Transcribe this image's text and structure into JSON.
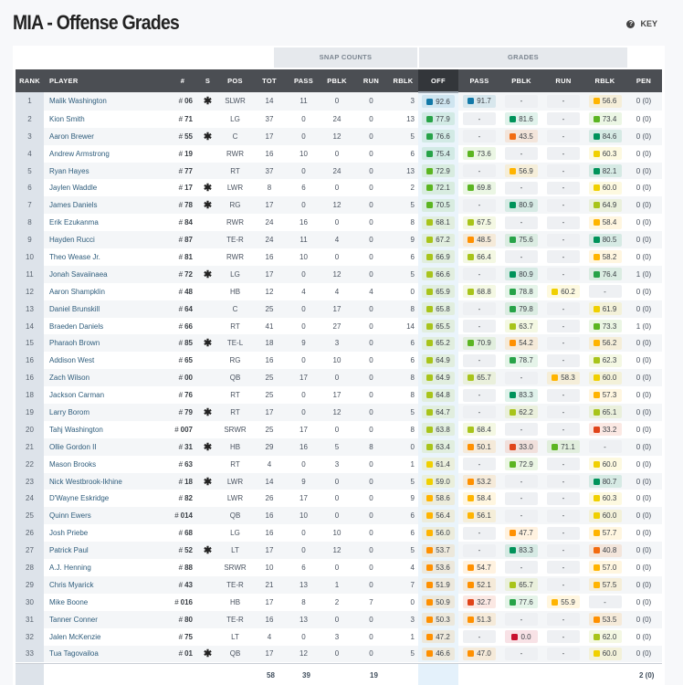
{
  "header": {
    "title": "MIA - Offense Grades",
    "key_label": "KEY",
    "key_icon": "question-circle-icon"
  },
  "groups": {
    "snap_counts": "SNAP COUNTS",
    "grades": "GRADES"
  },
  "columns": [
    "RANK",
    "PLAYER",
    "#",
    "S",
    "POS",
    "TOT",
    "PASS",
    "PBLK",
    "RUN",
    "RBLK",
    "OFF",
    "PASS",
    "PBLK",
    "RUN",
    "RBLK",
    "PEN"
  ],
  "grade_colors": {
    "elite": "#1279a8",
    "high": "#00935a",
    "good": "#27a348",
    "above_avg": "#5bb521",
    "avg_plus": "#a8c41a",
    "average": "#f0d000",
    "below_avg": "#ffb400",
    "poor": "#ff9000",
    "low": "#f26b10",
    "very_low": "#e0441a",
    "zero": "#c8102e"
  },
  "starter_icon": "asterisk-icon",
  "rows": [
    {
      "rank": "1",
      "player": "Malik Washington",
      "num": "06",
      "s": true,
      "pos": "SLWR",
      "snaps": [
        "14",
        "11",
        "0",
        "0",
        "3"
      ],
      "grades": [
        "92.6",
        "91.7",
        "-",
        "-",
        "56.6"
      ],
      "pen": "0 (0)"
    },
    {
      "rank": "2",
      "player": "Kion Smith",
      "num": "71",
      "s": false,
      "pos": "LG",
      "snaps": [
        "37",
        "0",
        "24",
        "0",
        "13"
      ],
      "grades": [
        "77.9",
        "-",
        "81.6",
        "-",
        "73.4"
      ],
      "pen": "0 (0)"
    },
    {
      "rank": "3",
      "player": "Aaron Brewer",
      "num": "55",
      "s": true,
      "pos": "C",
      "snaps": [
        "17",
        "0",
        "12",
        "0",
        "5"
      ],
      "grades": [
        "76.6",
        "-",
        "43.5",
        "-",
        "84.6"
      ],
      "pen": "0 (0)"
    },
    {
      "rank": "4",
      "player": "Andrew Armstrong",
      "num": "19",
      "s": false,
      "pos": "RWR",
      "snaps": [
        "16",
        "10",
        "0",
        "0",
        "6"
      ],
      "grades": [
        "75.4",
        "73.6",
        "-",
        "-",
        "60.3"
      ],
      "pen": "0 (0)"
    },
    {
      "rank": "5",
      "player": "Ryan Hayes",
      "num": "77",
      "s": false,
      "pos": "RT",
      "snaps": [
        "37",
        "0",
        "24",
        "0",
        "13"
      ],
      "grades": [
        "72.9",
        "-",
        "56.9",
        "-",
        "82.1"
      ],
      "pen": "0 (0)"
    },
    {
      "rank": "6",
      "player": "Jaylen Waddle",
      "num": "17",
      "s": true,
      "pos": "LWR",
      "snaps": [
        "8",
        "6",
        "0",
        "0",
        "2"
      ],
      "grades": [
        "72.1",
        "69.8",
        "-",
        "-",
        "60.0"
      ],
      "pen": "0 (0)"
    },
    {
      "rank": "7",
      "player": "James Daniels",
      "num": "78",
      "s": true,
      "pos": "RG",
      "snaps": [
        "17",
        "0",
        "12",
        "0",
        "5"
      ],
      "grades": [
        "70.5",
        "-",
        "80.9",
        "-",
        "64.9"
      ],
      "pen": "0 (0)"
    },
    {
      "rank": "8",
      "player": "Erik Ezukanma",
      "num": "84",
      "s": false,
      "pos": "RWR",
      "snaps": [
        "24",
        "16",
        "0",
        "0",
        "8"
      ],
      "grades": [
        "68.1",
        "67.5",
        "-",
        "-",
        "58.4"
      ],
      "pen": "0 (0)"
    },
    {
      "rank": "9",
      "player": "Hayden Rucci",
      "num": "87",
      "s": false,
      "pos": "TE-R",
      "snaps": [
        "24",
        "11",
        "4",
        "0",
        "9"
      ],
      "grades": [
        "67.2",
        "48.5",
        "75.6",
        "-",
        "80.5"
      ],
      "pen": "0 (0)"
    },
    {
      "rank": "10",
      "player": "Theo Wease Jr.",
      "num": "81",
      "s": false,
      "pos": "RWR",
      "snaps": [
        "16",
        "10",
        "0",
        "0",
        "6"
      ],
      "grades": [
        "66.9",
        "66.4",
        "-",
        "-",
        "58.2"
      ],
      "pen": "0 (0)"
    },
    {
      "rank": "11",
      "player": "Jonah Savaiinaea",
      "num": "72",
      "s": true,
      "pos": "LG",
      "snaps": [
        "17",
        "0",
        "12",
        "0",
        "5"
      ],
      "grades": [
        "66.6",
        "-",
        "80.9",
        "-",
        "76.4"
      ],
      "pen": "1 (0)"
    },
    {
      "rank": "12",
      "player": "Aaron Shampklin",
      "num": "48",
      "s": false,
      "pos": "HB",
      "snaps": [
        "12",
        "4",
        "4",
        "4",
        "0"
      ],
      "grades": [
        "65.9",
        "68.8",
        "78.8",
        "60.2",
        "-"
      ],
      "pen": "0 (0)"
    },
    {
      "rank": "13",
      "player": "Daniel Brunskill",
      "num": "64",
      "s": false,
      "pos": "C",
      "snaps": [
        "25",
        "0",
        "17",
        "0",
        "8"
      ],
      "grades": [
        "65.8",
        "-",
        "79.8",
        "-",
        "61.9"
      ],
      "pen": "0 (0)"
    },
    {
      "rank": "14",
      "player": "Braeden Daniels",
      "num": "66",
      "s": false,
      "pos": "RT",
      "snaps": [
        "41",
        "0",
        "27",
        "0",
        "14"
      ],
      "grades": [
        "65.5",
        "-",
        "63.7",
        "-",
        "73.3"
      ],
      "pen": "1 (0)"
    },
    {
      "rank": "15",
      "player": "Pharaoh Brown",
      "num": "85",
      "s": true,
      "pos": "TE-L",
      "snaps": [
        "18",
        "9",
        "3",
        "0",
        "6"
      ],
      "grades": [
        "65.2",
        "70.9",
        "54.2",
        "-",
        "56.2"
      ],
      "pen": "0 (0)"
    },
    {
      "rank": "16",
      "player": "Addison West",
      "num": "65",
      "s": false,
      "pos": "RG",
      "snaps": [
        "16",
        "0",
        "10",
        "0",
        "6"
      ],
      "grades": [
        "64.9",
        "-",
        "78.7",
        "-",
        "62.3"
      ],
      "pen": "0 (0)"
    },
    {
      "rank": "16",
      "player": "Zach Wilson",
      "num": "00",
      "s": false,
      "pos": "QB",
      "snaps": [
        "25",
        "17",
        "0",
        "0",
        "8"
      ],
      "grades": [
        "64.9",
        "65.7",
        "-",
        "58.3",
        "60.0"
      ],
      "pen": "0 (0)"
    },
    {
      "rank": "18",
      "player": "Jackson Carman",
      "num": "76",
      "s": false,
      "pos": "RT",
      "snaps": [
        "25",
        "0",
        "17",
        "0",
        "8"
      ],
      "grades": [
        "64.8",
        "-",
        "83.3",
        "-",
        "57.3"
      ],
      "pen": "0 (0)"
    },
    {
      "rank": "19",
      "player": "Larry Borom",
      "num": "79",
      "s": true,
      "pos": "RT",
      "snaps": [
        "17",
        "0",
        "12",
        "0",
        "5"
      ],
      "grades": [
        "64.7",
        "-",
        "62.2",
        "-",
        "65.1"
      ],
      "pen": "0 (0)"
    },
    {
      "rank": "20",
      "player": "Tahj Washington",
      "num": "007",
      "s": false,
      "pos": "SRWR",
      "snaps": [
        "25",
        "17",
        "0",
        "0",
        "8"
      ],
      "grades": [
        "63.8",
        "68.4",
        "-",
        "-",
        "33.2"
      ],
      "pen": "0 (0)"
    },
    {
      "rank": "21",
      "player": "Ollie Gordon II",
      "num": "31",
      "s": true,
      "pos": "HB",
      "snaps": [
        "29",
        "16",
        "5",
        "8",
        "0"
      ],
      "grades": [
        "63.4",
        "50.1",
        "33.0",
        "71.1",
        "-"
      ],
      "pen": "0 (0)"
    },
    {
      "rank": "22",
      "player": "Mason Brooks",
      "num": "63",
      "s": false,
      "pos": "RT",
      "snaps": [
        "4",
        "0",
        "3",
        "0",
        "1"
      ],
      "grades": [
        "61.4",
        "-",
        "72.9",
        "-",
        "60.0"
      ],
      "pen": "0 (0)"
    },
    {
      "rank": "23",
      "player": "Nick Westbrook-Ikhine",
      "num": "18",
      "s": true,
      "pos": "LWR",
      "snaps": [
        "14",
        "9",
        "0",
        "0",
        "5"
      ],
      "grades": [
        "59.0",
        "53.2",
        "-",
        "-",
        "80.7"
      ],
      "pen": "0 (0)"
    },
    {
      "rank": "24",
      "player": "D'Wayne Eskridge",
      "num": "82",
      "s": false,
      "pos": "LWR",
      "snaps": [
        "26",
        "17",
        "0",
        "0",
        "9"
      ],
      "grades": [
        "58.6",
        "58.4",
        "-",
        "-",
        "60.3"
      ],
      "pen": "0 (0)"
    },
    {
      "rank": "25",
      "player": "Quinn Ewers",
      "num": "014",
      "s": false,
      "pos": "QB",
      "snaps": [
        "16",
        "10",
        "0",
        "0",
        "6"
      ],
      "grades": [
        "56.4",
        "56.1",
        "-",
        "-",
        "60.0"
      ],
      "pen": "0 (0)"
    },
    {
      "rank": "26",
      "player": "Josh Priebe",
      "num": "68",
      "s": false,
      "pos": "LG",
      "snaps": [
        "16",
        "0",
        "10",
        "0",
        "6"
      ],
      "grades": [
        "56.0",
        "-",
        "47.7",
        "-",
        "57.7"
      ],
      "pen": "0 (0)"
    },
    {
      "rank": "27",
      "player": "Patrick Paul",
      "num": "52",
      "s": true,
      "pos": "LT",
      "snaps": [
        "17",
        "0",
        "12",
        "0",
        "5"
      ],
      "grades": [
        "53.7",
        "-",
        "83.3",
        "-",
        "40.8"
      ],
      "pen": "0 (0)"
    },
    {
      "rank": "28",
      "player": "A.J. Henning",
      "num": "88",
      "s": false,
      "pos": "SRWR",
      "snaps": [
        "10",
        "6",
        "0",
        "0",
        "4"
      ],
      "grades": [
        "53.6",
        "54.7",
        "-",
        "-",
        "57.0"
      ],
      "pen": "0 (0)"
    },
    {
      "rank": "29",
      "player": "Chris Myarick",
      "num": "43",
      "s": false,
      "pos": "TE-R",
      "snaps": [
        "21",
        "13",
        "1",
        "0",
        "7"
      ],
      "grades": [
        "51.9",
        "52.1",
        "65.7",
        "-",
        "57.5"
      ],
      "pen": "0 (0)"
    },
    {
      "rank": "30",
      "player": "Mike Boone",
      "num": "016",
      "s": false,
      "pos": "HB",
      "snaps": [
        "17",
        "8",
        "2",
        "7",
        "0"
      ],
      "grades": [
        "50.9",
        "32.7",
        "77.6",
        "55.9",
        "-"
      ],
      "pen": "0 (0)"
    },
    {
      "rank": "31",
      "player": "Tanner Conner",
      "num": "80",
      "s": false,
      "pos": "TE-R",
      "snaps": [
        "16",
        "13",
        "0",
        "0",
        "3"
      ],
      "grades": [
        "50.3",
        "51.3",
        "-",
        "-",
        "53.5"
      ],
      "pen": "0 (0)"
    },
    {
      "rank": "32",
      "player": "Jalen McKenzie",
      "num": "75",
      "s": false,
      "pos": "LT",
      "snaps": [
        "4",
        "0",
        "3",
        "0",
        "1"
      ],
      "grades": [
        "47.2",
        "-",
        "0.0",
        "-",
        "62.0"
      ],
      "pen": "0 (0)"
    },
    {
      "rank": "33",
      "player": "Tua Tagovailoa",
      "num": "01",
      "s": true,
      "pos": "QB",
      "snaps": [
        "17",
        "12",
        "0",
        "0",
        "5"
      ],
      "grades": [
        "46.6",
        "47.0",
        "-",
        "-",
        "60.0"
      ],
      "pen": "0 (0)"
    }
  ],
  "totals": {
    "tot": "58",
    "pass": "39",
    "run": "19",
    "pen": "2 (0)"
  }
}
